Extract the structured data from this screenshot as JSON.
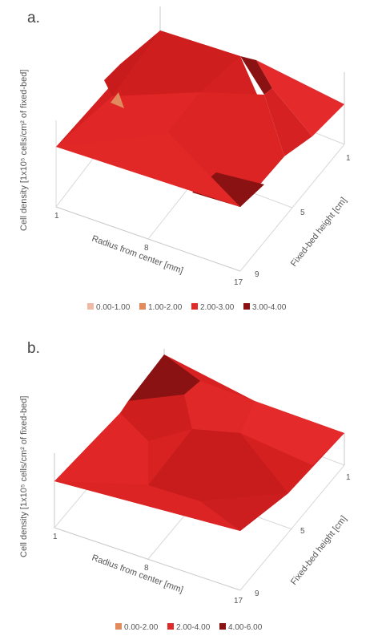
{
  "chart_data": [
    {
      "panel_label": "a.",
      "type": "surface3d",
      "x_label": "Radius from center [mm]",
      "y_label": "Fixed-bed height [cm]",
      "z_label": "Cell density [1x10⁵ cells/cm² of fixed-bed]",
      "x_ticks": [
        "1",
        "8",
        "17"
      ],
      "y_ticks": [
        "1",
        "5",
        "9"
      ],
      "x": [
        1,
        8,
        17
      ],
      "y": [
        1,
        5,
        9
      ],
      "z": [
        [
          2.9,
          3.3,
          2.2
        ],
        [
          2.6,
          2.9,
          2.5
        ],
        [
          2.4,
          3.1,
          2.7
        ]
      ],
      "legend": [
        {
          "label": "0.00-1.00",
          "color": "#f2b8a6"
        },
        {
          "label": "1.00-2.00",
          "color": "#e08a5e"
        },
        {
          "label": "2.00-3.00",
          "color": "#e02a2a"
        },
        {
          "label": "3.00-4.00",
          "color": "#8a1212"
        }
      ]
    },
    {
      "panel_label": "b.",
      "type": "surface3d",
      "x_label": "Radius from center [mm]",
      "y_label": "Fixed-bed height [cm]",
      "z_label": "Cell density [1x10⁵ cells/cm² of fixed-bed]",
      "x_ticks": [
        "1",
        "8",
        "17"
      ],
      "y_ticks": [
        "1",
        "5",
        "9"
      ],
      "x": [
        1,
        8,
        17
      ],
      "y": [
        1,
        5,
        9
      ],
      "z": [
        [
          4.3,
          3.6,
          3.4
        ],
        [
          3.5,
          3.5,
          3.2
        ],
        [
          3.0,
          3.3,
          3.0
        ]
      ],
      "legend": [
        {
          "label": "0.00-2.00",
          "color": "#e08a5e"
        },
        {
          "label": "2.00-4.00",
          "color": "#e02a2a"
        },
        {
          "label": "4.00-6.00",
          "color": "#8a1212"
        }
      ]
    }
  ]
}
